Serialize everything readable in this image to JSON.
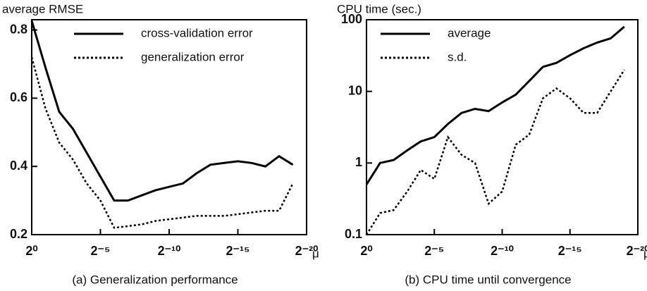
{
  "chart_data": [
    {
      "type": "line",
      "title": "average RMSE",
      "caption": "(a)  Generalization performance",
      "xlabel": "μ",
      "x": [
        0,
        -1,
        -2,
        -3,
        -4,
        -5,
        -6,
        -7,
        -8,
        -9,
        -10,
        -11,
        -12,
        -13,
        -14,
        -15,
        -16,
        -17,
        -18,
        -19
      ],
      "xlim": [
        0,
        -20
      ],
      "xticks": [
        {
          "value": 0,
          "label": "2⁰"
        },
        {
          "value": -5,
          "label": "2⁻⁵"
        },
        {
          "value": -10,
          "label": "2⁻¹⁰"
        },
        {
          "value": -15,
          "label": "2⁻¹⁵"
        },
        {
          "value": -20,
          "label": "2⁻²⁰"
        }
      ],
      "ylim": [
        0.2,
        0.83
      ],
      "yticks": [
        0.2,
        0.4,
        0.6,
        0.8
      ],
      "log": false,
      "legend": "upper right",
      "series": [
        {
          "name": "cross-validation error",
          "color": "#000000",
          "style": "solid",
          "values": [
            0.827,
            0.69,
            0.56,
            0.51,
            0.44,
            0.37,
            0.3,
            0.3,
            0.315,
            0.33,
            0.34,
            0.35,
            0.38,
            0.405,
            0.41,
            0.415,
            0.41,
            0.4,
            0.43,
            0.405
          ]
        },
        {
          "name": "generalization error",
          "color": "#000000",
          "style": "dotted",
          "values": [
            0.72,
            0.57,
            0.47,
            0.42,
            0.35,
            0.3,
            0.22,
            0.225,
            0.23,
            0.24,
            0.245,
            0.25,
            0.255,
            0.255,
            0.255,
            0.26,
            0.265,
            0.27,
            0.27,
            0.35
          ]
        }
      ]
    },
    {
      "type": "line",
      "title": "CPU time (sec.)",
      "caption": "(b)  CPU time until convergence",
      "xlabel": "μ",
      "x": [
        0,
        -1,
        -2,
        -3,
        -4,
        -5,
        -6,
        -7,
        -8,
        -9,
        -10,
        -11,
        -12,
        -13,
        -14,
        -15,
        -16,
        -17,
        -18,
        -19
      ],
      "xlim": [
        0,
        -20
      ],
      "xticks": [
        {
          "value": 0,
          "label": "2⁰"
        },
        {
          "value": -5,
          "label": "2⁻⁵"
        },
        {
          "value": -10,
          "label": "2⁻¹⁰"
        },
        {
          "value": -15,
          "label": "2⁻¹⁵"
        },
        {
          "value": -20,
          "label": "2⁻²⁰"
        }
      ],
      "ylim": [
        0.1,
        100
      ],
      "yticks": [
        0.1,
        1,
        10,
        100
      ],
      "log": true,
      "legend": "upper left",
      "series": [
        {
          "name": "average",
          "color": "#000000",
          "style": "solid",
          "values": [
            0.5,
            1.0,
            1.1,
            1.5,
            2.0,
            2.3,
            3.5,
            5,
            5.7,
            5.3,
            7,
            9,
            14,
            22,
            25,
            32,
            40,
            48,
            55,
            80
          ]
        },
        {
          "name": "s.d.",
          "color": "#000000",
          "style": "dotted",
          "values": [
            0.1,
            0.2,
            0.22,
            0.4,
            0.8,
            0.6,
            2.3,
            1.3,
            1.0,
            0.27,
            0.4,
            1.8,
            2.5,
            8,
            11,
            8,
            5,
            5,
            10,
            20
          ]
        }
      ]
    }
  ]
}
